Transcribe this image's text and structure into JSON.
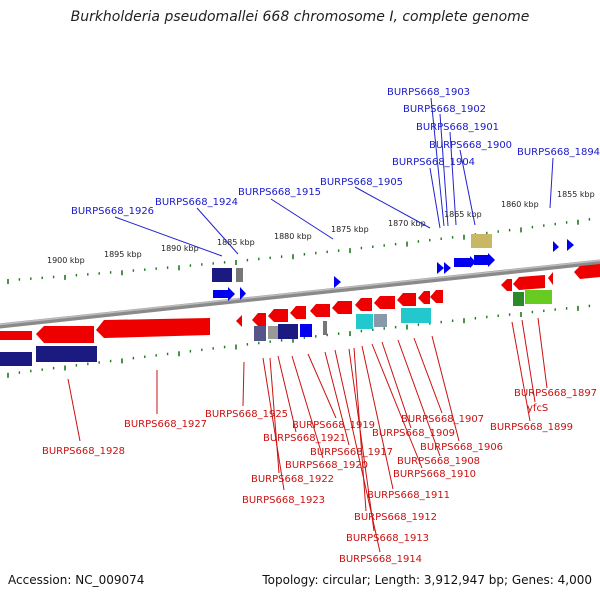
{
  "title": "Burkholderia pseudomallei 668 chromosome I, complete genome",
  "footer": {
    "accession": "Accession: NC_009074",
    "topology": "Topology: circular; Length: 3,912,947 bp; Genes: 4,000"
  },
  "kbp_labels": [
    "1900 kbp",
    "1895 kbp",
    "1890 kbp",
    "1885 kbp",
    "1880 kbp",
    "1875 kbp",
    "1870 kbp",
    "1865 kbp",
    "1860 kbp",
    "1855 kbp"
  ],
  "top_labels": [
    "BURPS668_1926",
    "BURPS668_1924",
    "BURPS668_1915",
    "BURPS668_1905",
    "BURPS668_1904",
    "BURPS668_1903",
    "BURPS668_1902",
    "BURPS668_1901",
    "BURPS668_1900",
    "BURPS668_1894"
  ],
  "bottom_labels": [
    "BURPS668_1928",
    "BURPS668_1927",
    "BURPS668_1925",
    "BURPS668_1923",
    "BURPS668_1922",
    "BURPS668_1921",
    "BURPS668_1920",
    "BURPS668_1919",
    "BURPS668_1917",
    "BURPS668_1914",
    "BURPS668_1913",
    "BURPS668_1912",
    "BURPS668_1911",
    "BURPS668_1910",
    "BURPS668_1909",
    "BURPS668_1908",
    "BURPS668_1907",
    "BURPS668_1906",
    "BURPS668_1899",
    "yfcS",
    "BURPS668_1897"
  ],
  "colors": {
    "forward_gene": "#0000ee",
    "reverse_gene": "#ee0000",
    "backbone": "#888888",
    "tick": "#1f7a1f",
    "cog_navy": "#1a1a80",
    "cog_cyan": "#22c8cc",
    "cog_green": "#66cc22",
    "cog_khaki": "#c8b866"
  }
}
